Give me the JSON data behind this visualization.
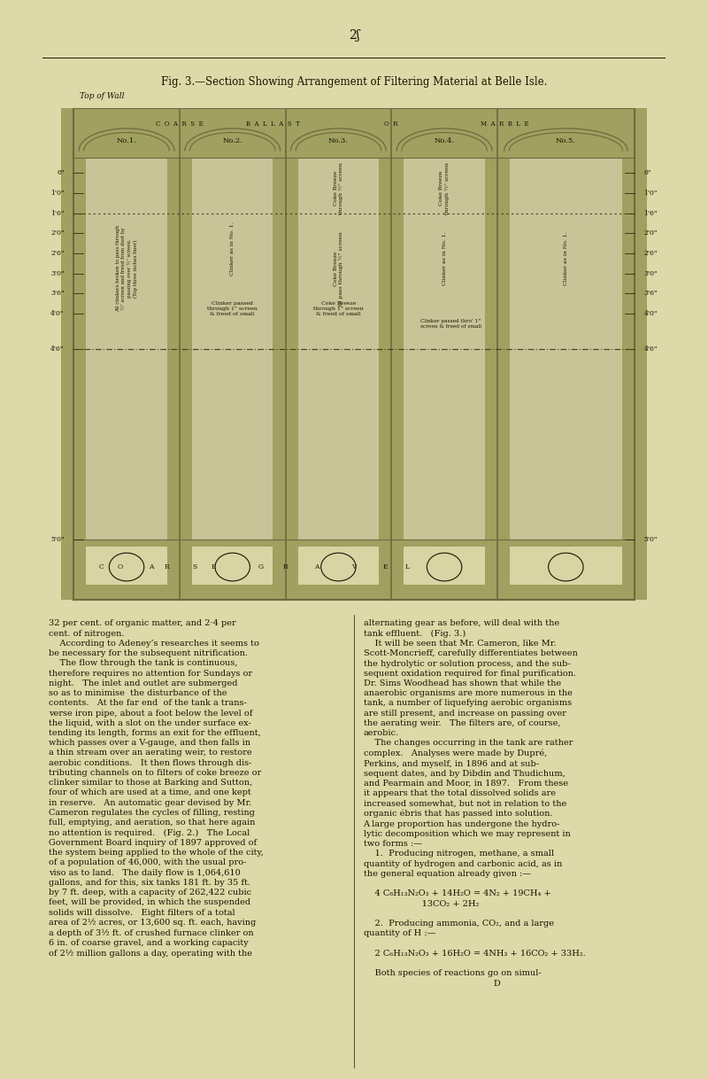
{
  "bg_color": "#ddd9a8",
  "page_number": "2ʃ",
  "title": "Fig. 3.—Section Showing Arrangement of Filtering Material at Belle Isle.",
  "top_label": "Top of Wall",
  "filter_numbers": [
    "No.1.",
    "No.2.",
    "No.3.",
    "No.4.",
    "No.5."
  ],
  "left_measurements": [
    "6\"",
    "1'0\"",
    "1'6\"",
    "2'0\"",
    "2'6\"",
    "3'0\"",
    "3'6\"",
    "4'0\"",
    "4'6\"",
    "5'0\""
  ],
  "right_measurements": [
    "6\"",
    "1'0\"",
    "1'6\"",
    "2'0\"",
    "2'6\"",
    "3'0\"",
    "3'6\"",
    "4'0\"",
    "4'6\"",
    "5'0\""
  ],
  "wall_color": "#a0a060",
  "wall_dark": "#706840",
  "inner_color": "#c8c498",
  "text_color": "#1a1400",
  "dashed_line_color": "#404020",
  "header_text": "COARSE    BALLAST    OR    MARBLE",
  "header_split": [
    "C  O  A  R  S  E",
    "B  A  L  L  A  S  T",
    "O  R",
    "M  A  R  B  L  E"
  ]
}
